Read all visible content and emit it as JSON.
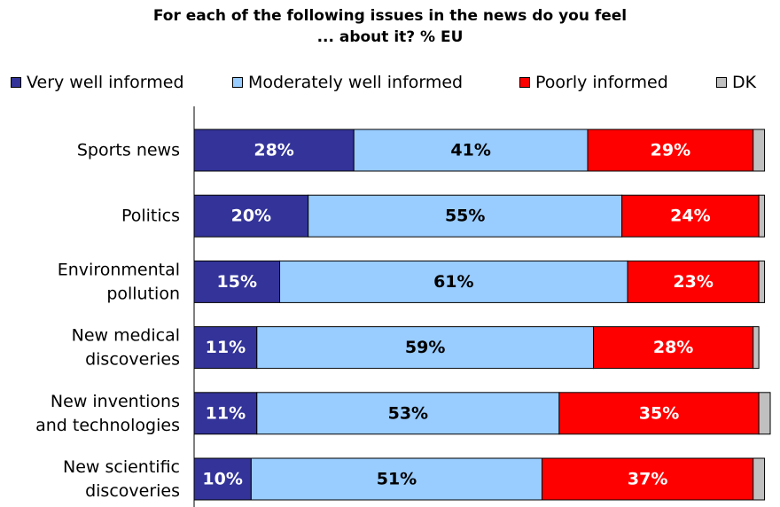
{
  "chart_data": {
    "type": "bar",
    "orientation": "horizontal",
    "stacked": true,
    "title": "For each of the following issues in the news do you feel ... about it? % EU",
    "title_lines": [
      "For each of the following issues in the news do you feel",
      "... about it? % EU"
    ],
    "categories": [
      [
        "Sports news"
      ],
      [
        "Politics"
      ],
      [
        "Environmental",
        "pollution"
      ],
      [
        "New medical",
        "discoveries"
      ],
      [
        "New inventions",
        "and technologies"
      ],
      [
        "New scientific",
        "discoveries"
      ]
    ],
    "series": [
      {
        "name": "Very well informed",
        "color": "#333399",
        "label_color": "#ffffff",
        "values": [
          28,
          20,
          15,
          11,
          11,
          10
        ]
      },
      {
        "name": "Moderately well informed",
        "color": "#99ccff",
        "label_color": "#000000",
        "values": [
          41,
          55,
          61,
          59,
          53,
          51
        ]
      },
      {
        "name": "Poorly informed",
        "color": "#ff0000",
        "label_color": "#ffffff",
        "values": [
          29,
          24,
          23,
          28,
          35,
          37
        ]
      },
      {
        "name": "DK",
        "color": "#c0c0c0",
        "label_color": "#000000",
        "values": [
          2,
          1,
          1,
          1,
          2,
          2
        ]
      }
    ],
    "shown_labels": [
      true,
      true,
      true,
      false
    ],
    "value_suffix": "%",
    "xlim": [
      0,
      101
    ],
    "legend_position": "top",
    "grid": false
  }
}
